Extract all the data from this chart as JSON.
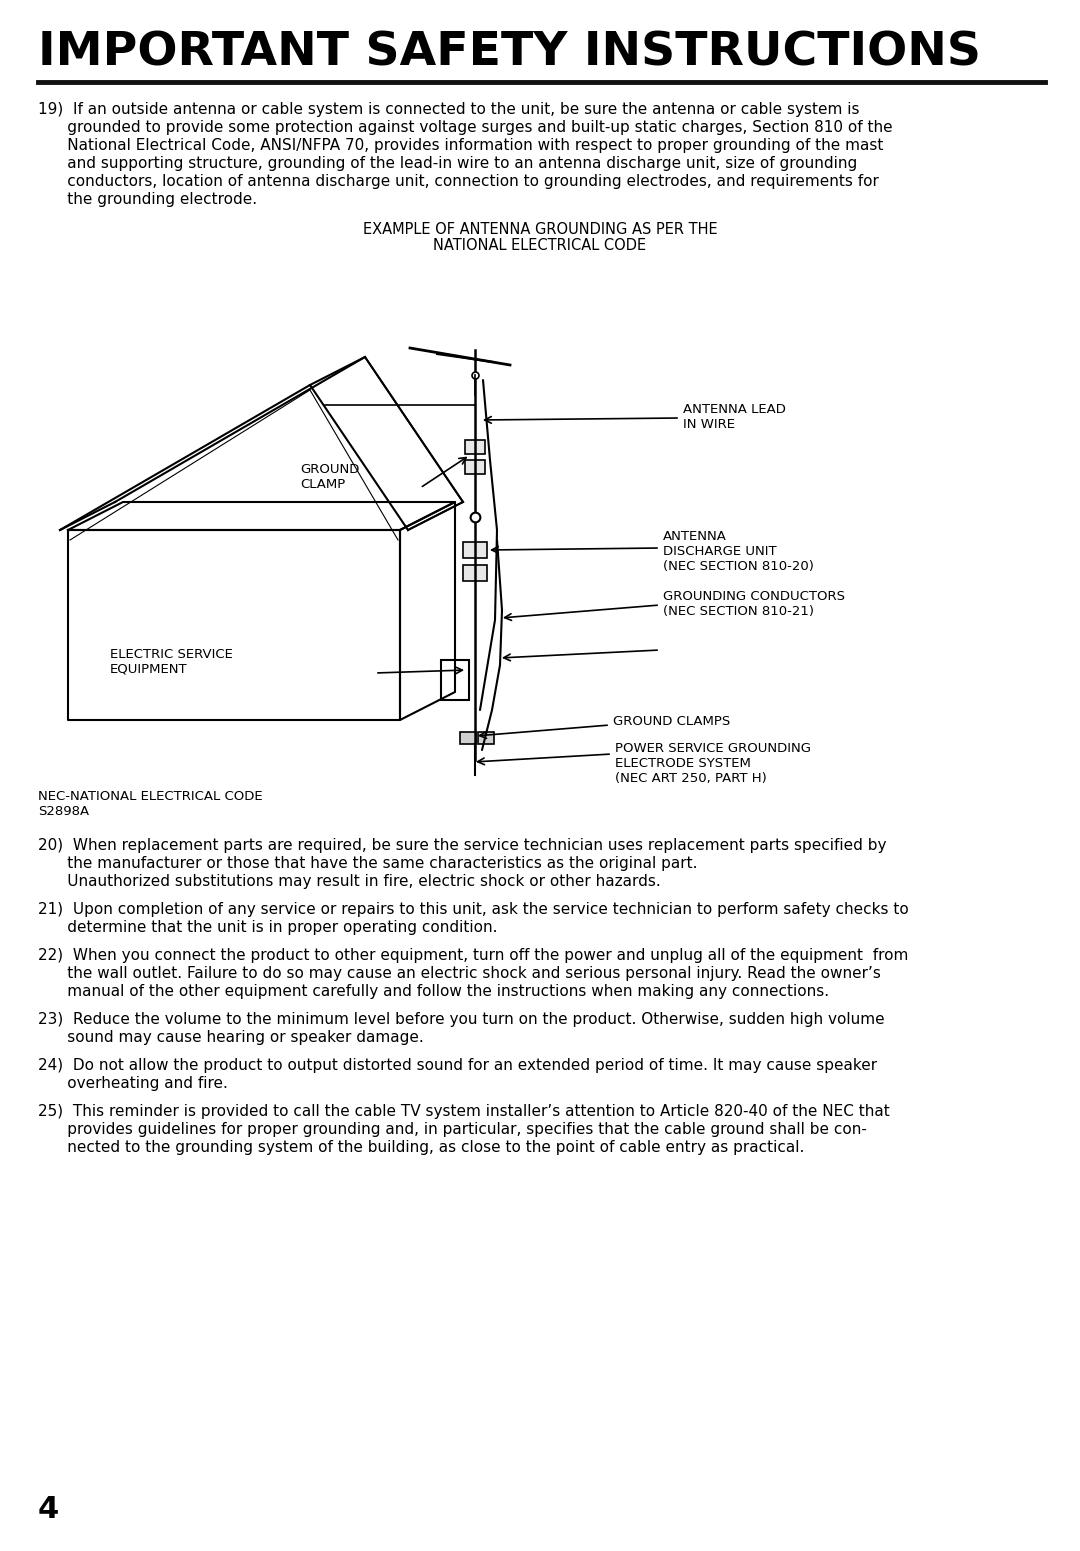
{
  "title": "IMPORTANT SAFETY INSTRUCTIONS",
  "bg_color": "#ffffff",
  "text_color": "#000000",
  "page_number": "4",
  "item19_line1": "19)  If an outside antenna or cable system is connected to the unit, be sure the antenna or cable system is",
  "item19_line2": "      grounded to provide some protection against voltage surges and built-up static charges, Section 810 of the",
  "item19_line3": "      National Electrical Code, ANSI/NFPA 70, provides information with respect to proper grounding of the mast",
  "item19_line4": "      and supporting structure, grounding of the lead-in wire to an antenna discharge unit, size of grounding",
  "item19_line5": "      conductors, location of antenna discharge unit, connection to grounding electrodes, and requirements for",
  "item19_line6": "      the grounding electrode.",
  "diagram_title_line1": "EXAMPLE OF ANTENNA GROUNDING AS PER THE",
  "diagram_title_line2": "NATIONAL ELECTRICAL CODE",
  "label_antenna_lead": "ANTENNA LEAD\nIN WIRE",
  "label_ground_clamp": "GROUND\nCLAMP",
  "label_antenna_discharge": "ANTENNA\nDISCHARGE UNIT\n(NEC SECTION 810-20)",
  "label_grounding_conductors": "GROUNDING CONDUCTORS\n(NEC SECTION 810-21)",
  "label_ground_clamps": "GROUND CLAMPS",
  "label_power_service": "POWER SERVICE GROUNDING\nELECTRODE SYSTEM\n(NEC ART 250, PART H)",
  "label_electric_service": "ELECTRIC SERVICE\nEQUIPMENT",
  "label_nec": "NEC-NATIONAL ELECTRICAL CODE\nS2898A",
  "item20_line1": "20)  When replacement parts are required, be sure the service technician uses replacement parts specified by",
  "item20_line2": "      the manufacturer or those that have the same characteristics as the original part.",
  "item20_line3": "      Unauthorized substitutions may result in fire, electric shock or other hazards.",
  "item21_line1": "21)  Upon completion of any service or repairs to this unit, ask the service technician to perform safety checks to",
  "item21_line2": "      determine that the unit is in proper operating condition.",
  "item22_line1": "22)  When you connect the product to other equipment, turn off the power and unplug all of the equipment  from",
  "item22_line2": "      the wall outlet. Failure to do so may cause an electric shock and serious personal injury. Read the owner’s",
  "item22_line3": "      manual of the other equipment carefully and follow the instructions when making any connections.",
  "item23_line1": "23)  Reduce the volume to the minimum level before you turn on the product. Otherwise, sudden high volume",
  "item23_line2": "      sound may cause hearing or speaker damage.",
  "item24_line1": "24)  Do not allow the product to output distorted sound for an extended period of time. It may cause speaker",
  "item24_line2": "      overheating and fire.",
  "item25_line1": "25)  This reminder is provided to call the cable TV system installer’s attention to Article 820-40 of the NEC that",
  "item25_line2": "      provides guidelines for proper grounding and, in particular, specifies that the cable ground shall be con-",
  "item25_line3": "      nected to the grounding system of the building, as close to the point of cable entry as practical."
}
